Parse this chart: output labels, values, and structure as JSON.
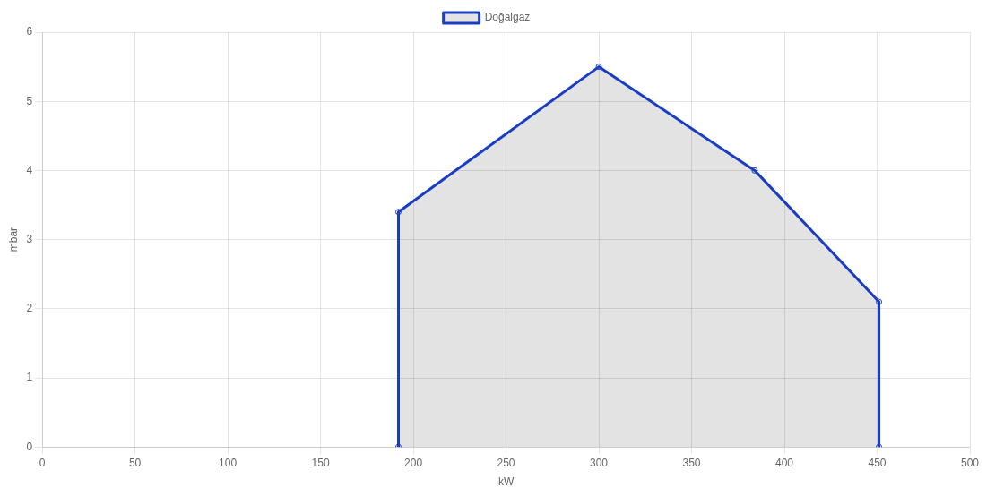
{
  "chart_data": {
    "type": "area",
    "xlabel": "kW",
    "ylabel": "mbar",
    "xlim": [
      0,
      500
    ],
    "xticks": [
      0,
      50,
      100,
      150,
      200,
      250,
      300,
      350,
      400,
      450,
      500
    ],
    "ylim": [
      0,
      6
    ],
    "yticks": [
      0,
      1,
      2,
      3,
      4,
      5,
      6
    ],
    "series": [
      {
        "name": "Doğalgaz",
        "color": "#1a3dc4",
        "x": [
          192,
          192,
          300,
          384,
          451,
          451
        ],
        "values": [
          0,
          3.4,
          5.5,
          4,
          2.1,
          0
        ]
      }
    ],
    "grid": true,
    "legend": "top",
    "marker": "circle",
    "line_style": "solid"
  }
}
